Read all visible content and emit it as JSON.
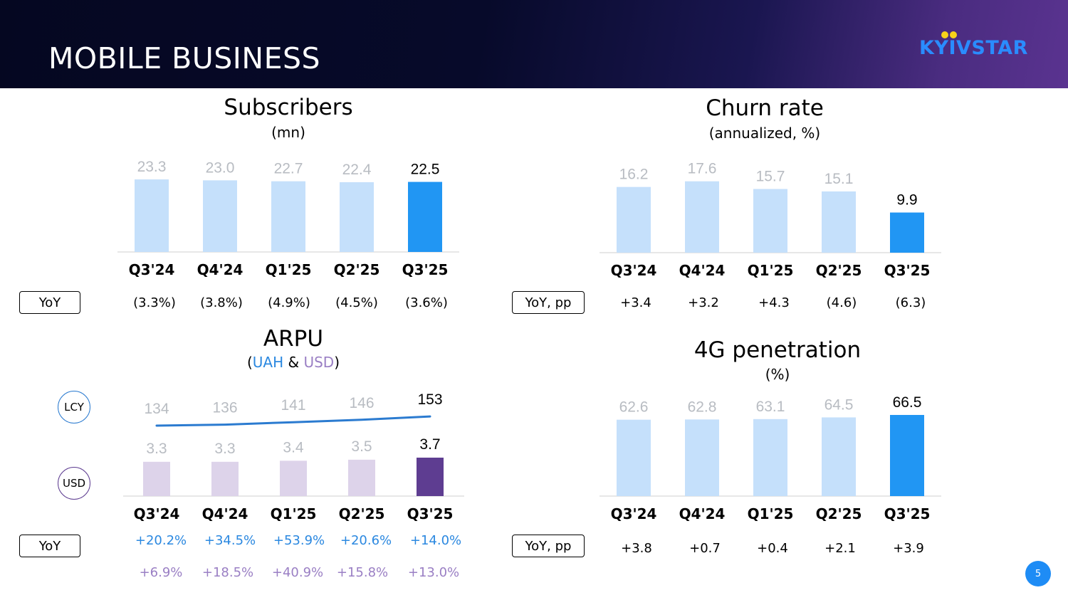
{
  "header": {
    "title": "MOBILE BUSINESS",
    "logo_text": "KYIVSTAR"
  },
  "colors": {
    "bar_light": "#c5e0fb",
    "bar_highlight": "#2196f3",
    "usd_light": "#ddd3ea",
    "usd_highlight": "#5e3d91",
    "line_uah": "#2b7bd0",
    "label_light": "#b8bcc2",
    "text_uah": "#2b88e0",
    "text_usd": "#9a7fc4"
  },
  "chart_data": [
    {
      "id": "subscribers",
      "type": "bar",
      "title": "Subscribers",
      "subtitle": "(mn)",
      "categories": [
        "Q3'24",
        "Q4'24",
        "Q1'25",
        "Q2'25",
        "Q3'25"
      ],
      "values": [
        23.3,
        23.0,
        22.7,
        22.4,
        22.5
      ],
      "value_labels": [
        "23.3",
        "23.0",
        "22.7",
        "22.4",
        "22.5"
      ],
      "highlight_index": 4,
      "ylim": [
        0,
        24
      ],
      "yoy_label": "YoY",
      "yoy": [
        "(3.3%)",
        "(3.8%)",
        "(4.9%)",
        "(4.5%)",
        "(3.6%)"
      ]
    },
    {
      "id": "churn",
      "type": "bar",
      "title": "Churn rate",
      "subtitle": "(annualized, %)",
      "categories": [
        "Q3'24",
        "Q4'24",
        "Q1'25",
        "Q2'25",
        "Q3'25"
      ],
      "values": [
        16.2,
        17.6,
        15.7,
        15.1,
        9.9
      ],
      "value_labels": [
        "16.2",
        "17.6",
        "15.7",
        "15.1",
        "9.9"
      ],
      "highlight_index": 4,
      "ylim": [
        0,
        18.6
      ],
      "yoy_label": "YoY, pp",
      "yoy": [
        "+3.4",
        "+3.2",
        "+4.3",
        "(4.6)",
        "(6.3)"
      ]
    },
    {
      "id": "arpu",
      "type": "bar_line",
      "title": "ARPU",
      "subtitle_parts": [
        "(",
        "UAH",
        " & ",
        "USD",
        ")"
      ],
      "categories": [
        "Q3'24",
        "Q4'24",
        "Q1'25",
        "Q2'25",
        "Q3'25"
      ],
      "line_series": {
        "name": "LCY",
        "values": [
          134,
          136,
          141,
          146,
          153
        ],
        "value_labels": [
          "134",
          "136",
          "141",
          "146",
          "153"
        ]
      },
      "bar_series": {
        "name": "USD",
        "values": [
          3.3,
          3.3,
          3.4,
          3.5,
          3.7
        ],
        "value_labels": [
          "3.3",
          "3.3",
          "3.4",
          "3.5",
          "3.7"
        ]
      },
      "highlight_index": 4,
      "badges": {
        "lcy": "LCY",
        "usd": "USD"
      },
      "yoy_label": "YoY",
      "yoy_uah": [
        "+20.2%",
        "+34.5%",
        "+53.9%",
        "+20.6%",
        "+14.0%"
      ],
      "yoy_usd": [
        "+6.9%",
        "+18.5%",
        "+40.9%",
        "+15.8%",
        "+13.0%"
      ]
    },
    {
      "id": "penetration",
      "type": "bar",
      "title": "4G penetration",
      "subtitle": "(%)",
      "categories": [
        "Q3'24",
        "Q4'24",
        "Q1'25",
        "Q2'25",
        "Q3'25"
      ],
      "values": [
        62.6,
        62.8,
        63.1,
        64.5,
        66.5
      ],
      "value_labels": [
        "62.6",
        "62.8",
        "63.1",
        "64.5",
        "66.5"
      ],
      "highlight_index": 4,
      "ylim": [
        0,
        70
      ],
      "yoy_label": "YoY, pp",
      "yoy": [
        "+3.8",
        "+0.7",
        "+0.4",
        "+2.1",
        "+3.9"
      ]
    }
  ],
  "page_number": "5"
}
